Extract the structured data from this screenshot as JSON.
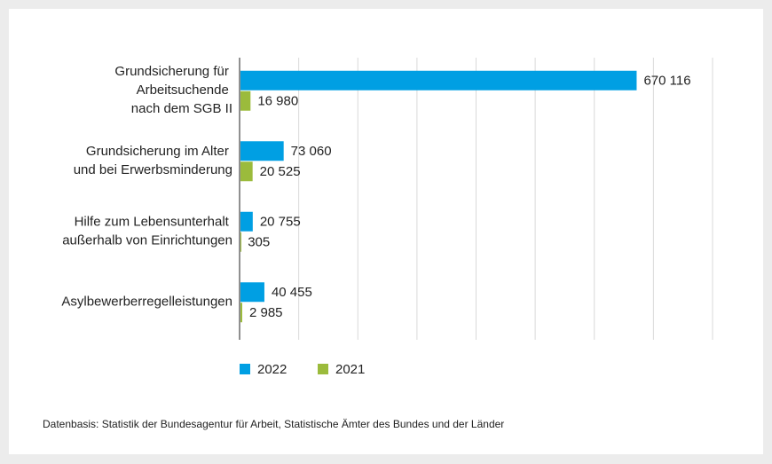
{
  "chart_data": {
    "type": "hbar",
    "categories": [
      "Grundsicherung für\nArbeitsuchende\nnach dem SGB II",
      "Grundsicherung im Alter\nund bei Erwerbsminderung",
      "Hilfe zum Lebensunterhalt\naußerhalb von Einrichtungen",
      "Asylbewerberregelleistungen"
    ],
    "series": [
      {
        "name": "2022",
        "color": "#009fe3",
        "values": [
          670116,
          73060,
          20755,
          40455
        ],
        "value_labels": [
          "670 116",
          "73 060",
          "20 755",
          "40 455"
        ]
      },
      {
        "name": "2021",
        "color": "#9bbb3c",
        "values": [
          16980,
          20525,
          305,
          2985
        ],
        "value_labels": [
          "16 980",
          "20 525",
          "305",
          "2 985"
        ]
      }
    ],
    "xlim": [
      0,
      800000
    ],
    "xticks": [
      0,
      100000,
      200000,
      300000,
      400000,
      500000,
      600000,
      700000,
      800000
    ],
    "grid": true,
    "legend": "bottom",
    "source": "Datenbasis: Statistik der Bundesagentur für Arbeit, Statistische Ämter des Bundes und der Länder"
  }
}
